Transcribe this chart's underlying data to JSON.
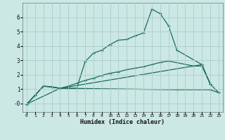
{
  "xlabel": "Humidex (Indice chaleur)",
  "background_color": "#cce8e4",
  "grid_color": "#aacccc",
  "line_color": "#1a6b5a",
  "xlim": [
    -0.5,
    23.5
  ],
  "ylim": [
    -0.6,
    7.0
  ],
  "yticks": [
    0,
    1,
    2,
    3,
    4,
    5,
    6
  ],
  "ytick_labels": [
    "-0",
    "1",
    "2",
    "3",
    "4",
    "5",
    "6"
  ],
  "xticks": [
    0,
    1,
    2,
    3,
    4,
    5,
    6,
    7,
    8,
    9,
    10,
    11,
    12,
    13,
    14,
    15,
    16,
    17,
    18,
    19,
    20,
    21,
    22,
    23
  ],
  "line1_x": [
    0,
    1,
    2,
    3,
    4,
    5,
    6,
    7,
    8,
    9,
    10,
    11,
    12,
    13,
    14,
    15,
    16,
    17,
    18,
    21,
    22
  ],
  "line1_y": [
    -0.05,
    0.55,
    1.2,
    1.15,
    1.05,
    1.05,
    1.05,
    2.9,
    3.5,
    3.7,
    4.1,
    4.4,
    4.45,
    4.7,
    4.9,
    6.55,
    6.25,
    5.4,
    3.7,
    2.7,
    1.35
  ],
  "line2_x": [
    0,
    1,
    2,
    3,
    4,
    5,
    6,
    7,
    8,
    9,
    10,
    11,
    12,
    13,
    14,
    15,
    16,
    17,
    20,
    21,
    22
  ],
  "line2_y": [
    -0.05,
    0.55,
    1.2,
    1.15,
    1.05,
    1.2,
    1.4,
    1.6,
    1.75,
    1.95,
    2.1,
    2.2,
    2.35,
    2.45,
    2.55,
    2.7,
    2.85,
    2.95,
    2.6,
    2.6,
    1.35
  ],
  "line3_x": [
    0,
    4,
    5,
    18,
    22,
    23
  ],
  "line3_y": [
    -0.05,
    1.05,
    1.05,
    0.95,
    0.95,
    0.75
  ],
  "line4_x": [
    0,
    2,
    4,
    21,
    22,
    23
  ],
  "line4_y": [
    -0.05,
    1.2,
    1.05,
    2.7,
    1.35,
    0.75
  ],
  "marker": "+",
  "markersize": 3.5,
  "linewidth": 0.9
}
